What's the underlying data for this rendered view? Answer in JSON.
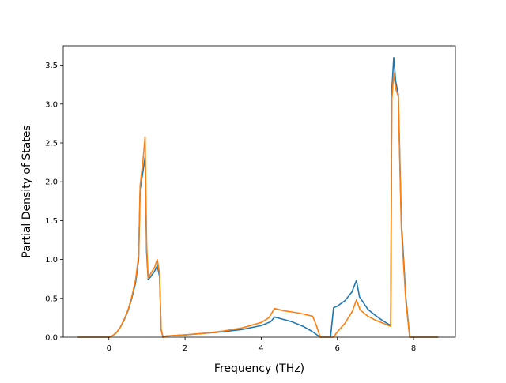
{
  "chart_data": {
    "type": "line",
    "title": "",
    "xlabel": "Frequency (THz)",
    "ylabel": "Partial Density of States",
    "xlim": [
      -1.2,
      9.1
    ],
    "ylim": [
      0.0,
      3.75
    ],
    "xticks": [
      0,
      2,
      4,
      6,
      8
    ],
    "xtick_labels": [
      "0",
      "2",
      "4",
      "6",
      "8"
    ],
    "yticks": [
      0.0,
      0.5,
      1.0,
      1.5,
      2.0,
      2.5,
      3.0,
      3.5
    ],
    "ytick_labels": [
      "0.0",
      "0.5",
      "1.0",
      "1.5",
      "2.0",
      "2.5",
      "3.0",
      "3.5"
    ],
    "grid": false,
    "legend": null,
    "series": [
      {
        "color": "#1f77b4",
        "points": [
          [
            -0.82,
            0.0
          ],
          [
            0.0,
            0.0
          ],
          [
            0.1,
            0.02
          ],
          [
            0.2,
            0.06
          ],
          [
            0.3,
            0.13
          ],
          [
            0.4,
            0.22
          ],
          [
            0.5,
            0.34
          ],
          [
            0.6,
            0.5
          ],
          [
            0.7,
            0.7
          ],
          [
            0.78,
            1.0
          ],
          [
            0.82,
            1.9
          ],
          [
            0.9,
            2.15
          ],
          [
            0.95,
            2.32
          ],
          [
            0.99,
            1.1
          ],
          [
            1.03,
            0.74
          ],
          [
            1.1,
            0.78
          ],
          [
            1.2,
            0.85
          ],
          [
            1.27,
            0.92
          ],
          [
            1.33,
            0.78
          ],
          [
            1.37,
            0.1
          ],
          [
            1.42,
            0.0
          ],
          [
            1.5,
            0.015
          ],
          [
            2.0,
            0.03
          ],
          [
            2.5,
            0.05
          ],
          [
            3.0,
            0.07
          ],
          [
            3.5,
            0.1
          ],
          [
            4.0,
            0.15
          ],
          [
            4.25,
            0.2
          ],
          [
            4.35,
            0.26
          ],
          [
            4.5,
            0.24
          ],
          [
            4.8,
            0.2
          ],
          [
            5.1,
            0.14
          ],
          [
            5.35,
            0.07
          ],
          [
            5.55,
            0.0
          ],
          [
            5.82,
            0.0
          ],
          [
            5.9,
            0.38
          ],
          [
            6.0,
            0.4
          ],
          [
            6.2,
            0.47
          ],
          [
            6.38,
            0.58
          ],
          [
            6.5,
            0.73
          ],
          [
            6.58,
            0.52
          ],
          [
            6.8,
            0.36
          ],
          [
            7.0,
            0.28
          ],
          [
            7.2,
            0.21
          ],
          [
            7.4,
            0.15
          ],
          [
            7.43,
            3.18
          ],
          [
            7.48,
            3.6
          ],
          [
            7.53,
            3.3
          ],
          [
            7.6,
            3.12
          ],
          [
            7.68,
            1.5
          ],
          [
            7.8,
            0.5
          ],
          [
            7.9,
            0.0
          ],
          [
            8.65,
            0.0
          ]
        ]
      },
      {
        "color": "#ff7f0e",
        "points": [
          [
            -0.82,
            0.0
          ],
          [
            0.0,
            0.0
          ],
          [
            0.1,
            0.02
          ],
          [
            0.2,
            0.06
          ],
          [
            0.3,
            0.13
          ],
          [
            0.4,
            0.23
          ],
          [
            0.5,
            0.35
          ],
          [
            0.6,
            0.52
          ],
          [
            0.7,
            0.74
          ],
          [
            0.78,
            1.05
          ],
          [
            0.82,
            1.95
          ],
          [
            0.9,
            2.3
          ],
          [
            0.95,
            2.58
          ],
          [
            0.99,
            1.2
          ],
          [
            1.03,
            0.76
          ],
          [
            1.1,
            0.82
          ],
          [
            1.2,
            0.9
          ],
          [
            1.27,
            1.0
          ],
          [
            1.33,
            0.82
          ],
          [
            1.37,
            0.1
          ],
          [
            1.42,
            0.0
          ],
          [
            1.5,
            0.015
          ],
          [
            2.0,
            0.03
          ],
          [
            2.5,
            0.05
          ],
          [
            3.0,
            0.08
          ],
          [
            3.5,
            0.12
          ],
          [
            4.0,
            0.19
          ],
          [
            4.2,
            0.25
          ],
          [
            4.35,
            0.37
          ],
          [
            4.6,
            0.34
          ],
          [
            5.0,
            0.31
          ],
          [
            5.35,
            0.27
          ],
          [
            5.45,
            0.15
          ],
          [
            5.55,
            0.0
          ],
          [
            5.9,
            0.0
          ],
          [
            6.0,
            0.07
          ],
          [
            6.2,
            0.18
          ],
          [
            6.4,
            0.34
          ],
          [
            6.5,
            0.48
          ],
          [
            6.6,
            0.35
          ],
          [
            6.8,
            0.27
          ],
          [
            7.0,
            0.22
          ],
          [
            7.2,
            0.18
          ],
          [
            7.4,
            0.14
          ],
          [
            7.43,
            3.05
          ],
          [
            7.48,
            3.4
          ],
          [
            7.53,
            3.2
          ],
          [
            7.6,
            3.1
          ],
          [
            7.68,
            1.4
          ],
          [
            7.8,
            0.45
          ],
          [
            7.9,
            0.0
          ],
          [
            8.65,
            0.0
          ]
        ]
      }
    ]
  }
}
